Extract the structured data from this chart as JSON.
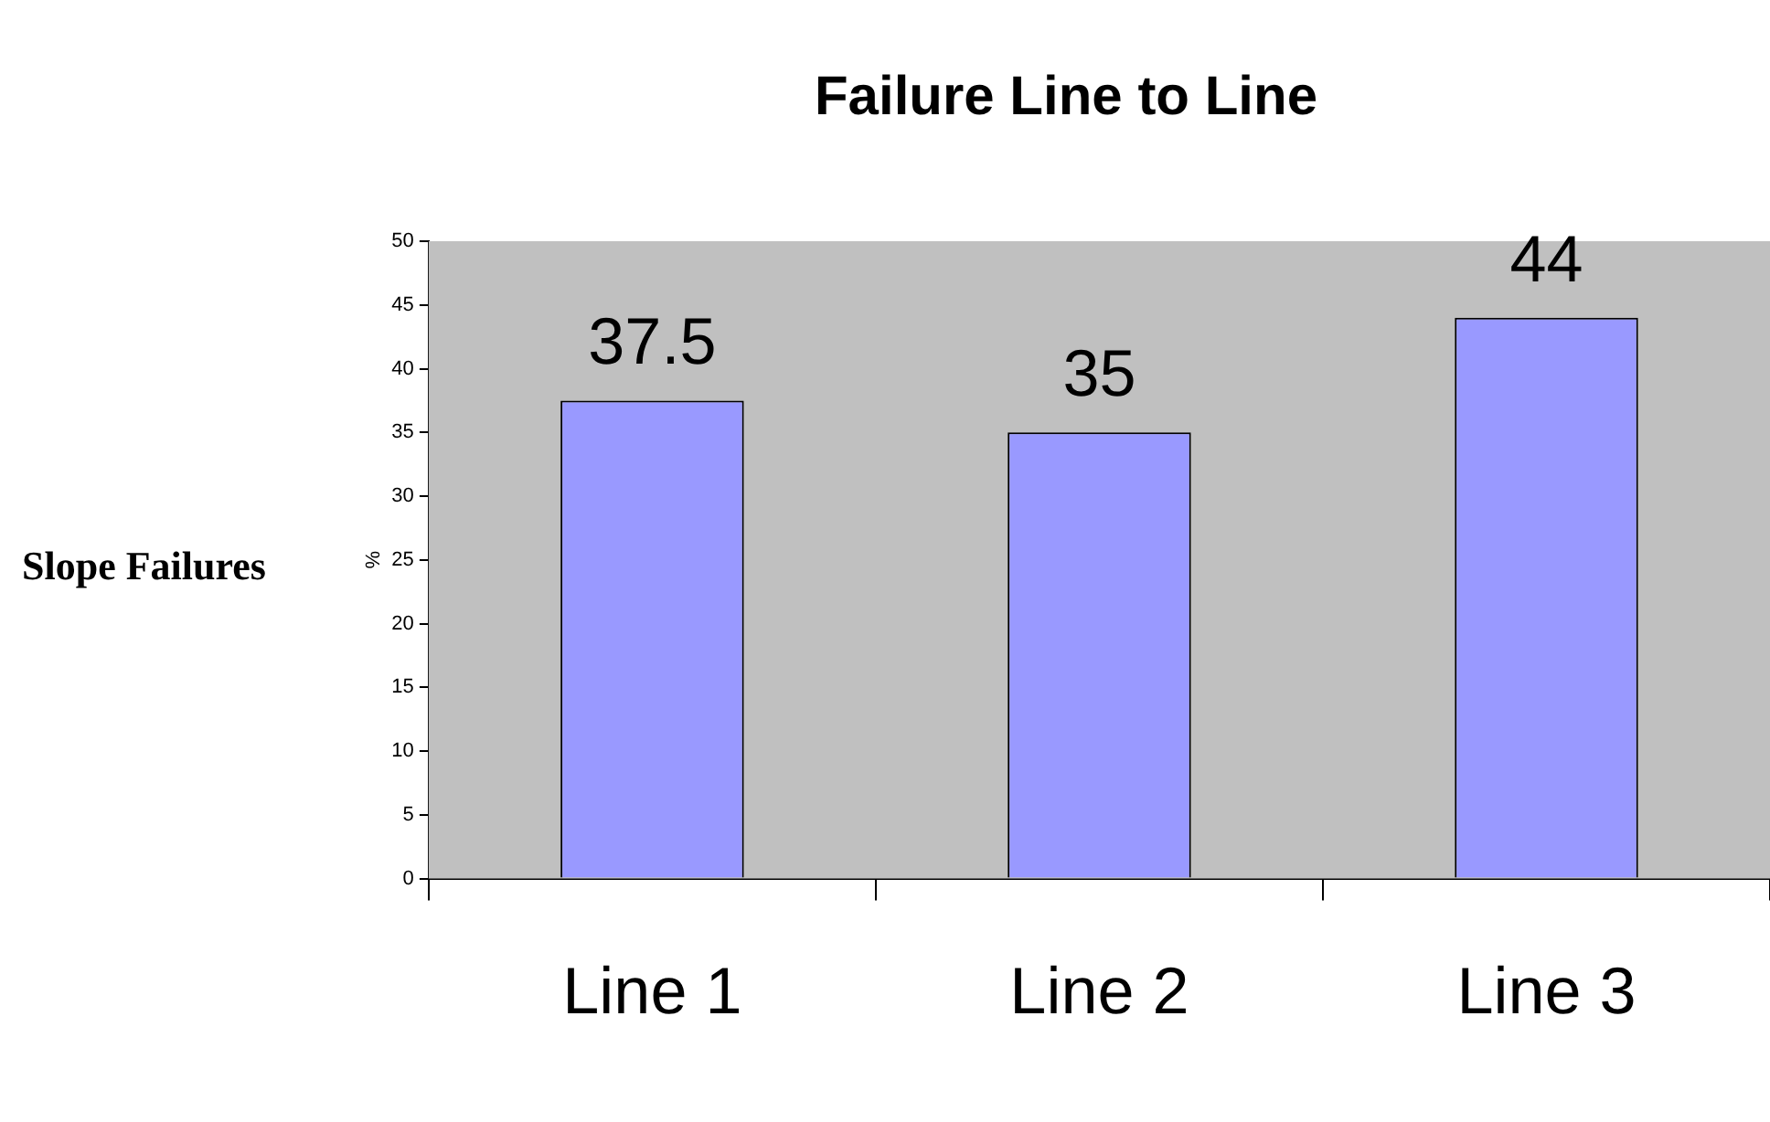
{
  "chart_data": {
    "type": "bar",
    "title": "Failure Line to Line",
    "ylabel": "%",
    "annotations": [
      "Slope Failures"
    ],
    "categories": [
      "Line 1",
      "Line 2",
      "Line 3"
    ],
    "values": [
      37.5,
      35,
      44
    ],
    "color": "#9999ff",
    "ylim": [
      0,
      50
    ],
    "yticks": [
      0,
      5,
      10,
      15,
      20,
      25,
      30,
      35,
      40,
      45,
      50
    ],
    "grid": false,
    "legend": false,
    "data_labels": true
  }
}
